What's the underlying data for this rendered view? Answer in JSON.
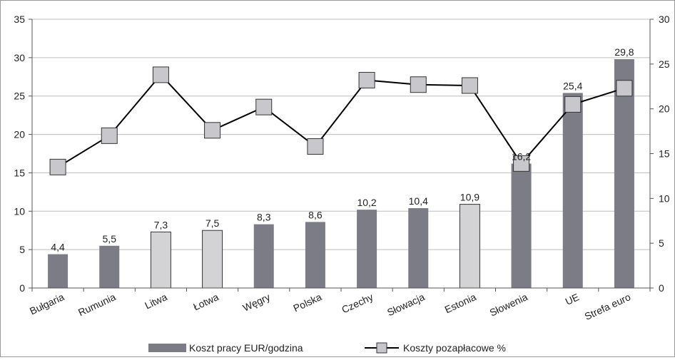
{
  "chart_data": {
    "type": "bar",
    "categories": [
      "Bułgaria",
      "Rumunia",
      "Litwa",
      "Łotwa",
      "Węgry",
      "Polska",
      "Czechy",
      "Słowacja",
      "Estonia",
      "Słowenia",
      "UE",
      "Strefa euro"
    ],
    "series": [
      {
        "name": "Koszt pracy EUR/godzina",
        "type": "bar",
        "axis": "left",
        "values": [
          4.4,
          5.5,
          7.3,
          7.5,
          8.3,
          8.6,
          10.2,
          10.4,
          10.9,
          16.2,
          25.4,
          29.8
        ],
        "labels": [
          "4,4",
          "5,5",
          "7,3",
          "7,5",
          "8,3",
          "8,6",
          "10,2",
          "10,4",
          "10,9",
          "16,2",
          "25,4",
          "29,8"
        ],
        "colors": [
          "#7b7c86",
          "#7b7c86",
          "#d3d3d6",
          "#d3d3d6",
          "#7b7c86",
          "#7b7c86",
          "#7b7c86",
          "#7b7c86",
          "#d3d3d6",
          "#7b7c86",
          "#7b7c86",
          "#7b7c86"
        ]
      },
      {
        "name": "Koszty pozapłacowe %",
        "type": "line",
        "axis": "right",
        "values": [
          13.5,
          17.0,
          23.8,
          17.6,
          20.2,
          15.8,
          23.2,
          22.7,
          22.6,
          13.9,
          20.5,
          22.3
        ],
        "color": "#000000",
        "marker_color": "#c8c8cc"
      }
    ],
    "yleft": {
      "lim": [
        0,
        35
      ],
      "ticks": [
        "0",
        "5",
        "10",
        "15",
        "20",
        "25",
        "30",
        "35"
      ]
    },
    "yright": {
      "lim": [
        0,
        30
      ],
      "ticks": [
        "0",
        "5",
        "10",
        "15",
        "20",
        "25",
        "30"
      ]
    },
    "grid": "horizontal",
    "legend": "bottom"
  },
  "colors": {
    "bar_dark": "#7b7c86",
    "bar_light": "#d3d3d6",
    "grid": "#bdbdbd",
    "axis": "#555555"
  }
}
